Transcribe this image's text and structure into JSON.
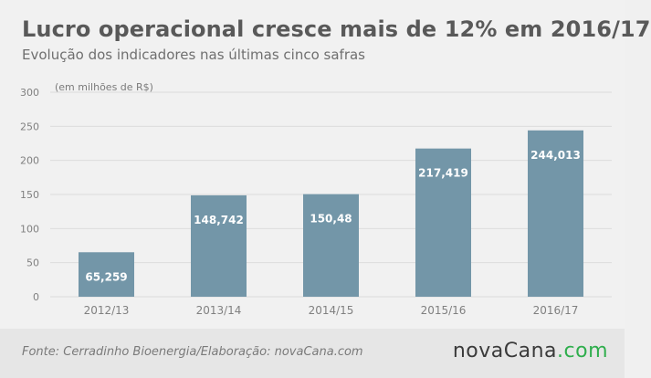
{
  "title": "Lucro operacional cresce mais de 12% em 2016/17",
  "subtitle": "Evolução dos indicadores nas últimas cinco safras",
  "unit_label": "(em milhões de R$)",
  "source": "Fonte: Cerradinho Bioenergia/Elaboração: novaCana.com",
  "logo": {
    "main": "novaCana",
    "tld": ".com"
  },
  "colors": {
    "bar": "#7396a8",
    "grid": "#dcdcdc",
    "axis_text": "#808080",
    "label": "#ffffff",
    "logo_tld": "#2fae4d"
  },
  "chart_data": {
    "type": "bar",
    "categories": [
      "2012/13",
      "2013/14",
      "2014/15",
      "2015/16",
      "2016/17"
    ],
    "values": [
      65.259,
      148.742,
      150.48,
      217.419,
      244.013
    ],
    "data_labels": [
      "65,259",
      "148,742",
      "150,48",
      "217,419",
      "244,013"
    ],
    "ylim": [
      0,
      300
    ],
    "yticks": [
      0,
      50,
      100,
      150,
      200,
      250,
      300
    ],
    "grid": true
  }
}
